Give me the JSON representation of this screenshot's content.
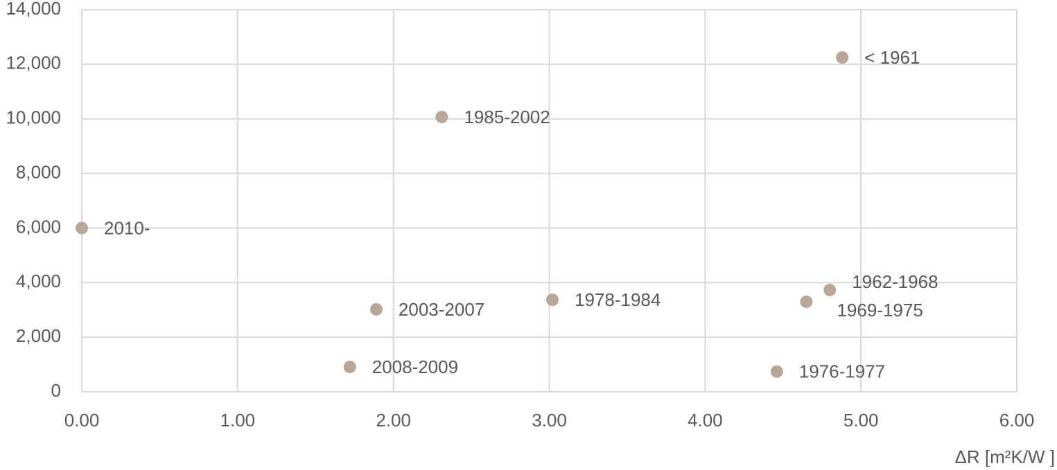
{
  "chart_data": {
    "type": "scatter",
    "x_label": "ΔR [m²K/W ]",
    "labels": [
      "2010-",
      "2003-2007",
      "1985-2002",
      "2008-2009",
      "1978-1984",
      "1976-1977",
      "1969-1975",
      "1962-1968",
      "< 1961"
    ],
    "x": [
      0.0,
      1.89,
      2.31,
      1.72,
      3.02,
      4.46,
      4.65,
      4.8,
      4.88
    ],
    "values": [
      6000,
      3020,
      10070,
      910,
      3370,
      740,
      3300,
      3730,
      12250
    ],
    "color": "#b9a697",
    "xlim": [
      0,
      6
    ],
    "ylim": [
      0,
      14000
    ],
    "xticks": [
      {
        "value": 0,
        "label": "0.00"
      },
      {
        "value": 1,
        "label": "1.00"
      },
      {
        "value": 2,
        "label": "2.00"
      },
      {
        "value": 3,
        "label": "3.00"
      },
      {
        "value": 4,
        "label": "4.00"
      },
      {
        "value": 5,
        "label": "5.00"
      },
      {
        "value": 6,
        "label": "6.00"
      }
    ],
    "yticks": [
      0,
      {
        "value": 2000,
        "label": "2,000"
      },
      {
        "value": 4000,
        "label": "4,000"
      },
      {
        "value": 6000,
        "label": "6,000"
      },
      {
        "value": 8000,
        "label": "8,000"
      },
      {
        "value": 10000,
        "label": "10,000"
      },
      {
        "value": 12000,
        "label": "12,000"
      },
      {
        "value": 14000,
        "label": "14,000"
      }
    ],
    "grid": true
  }
}
